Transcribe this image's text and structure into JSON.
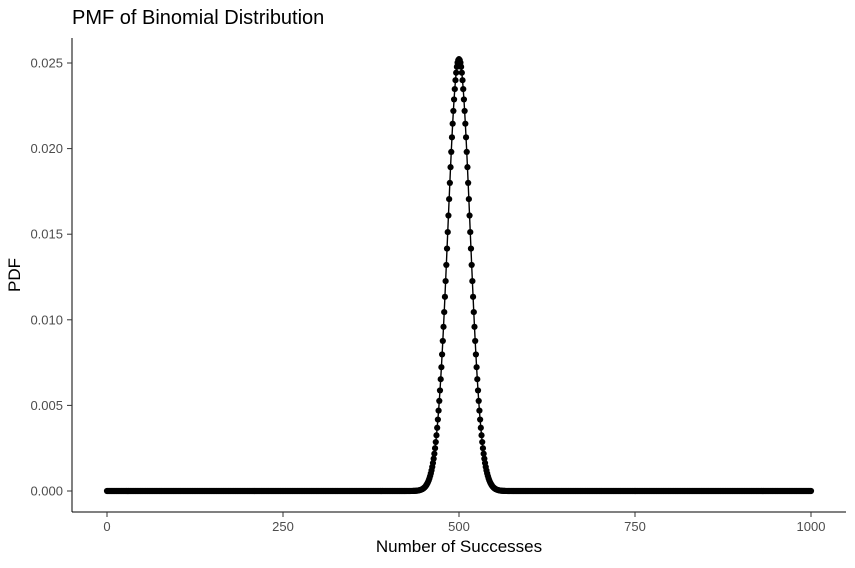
{
  "chart_data": {
    "type": "scatter",
    "title": "PMF of Binomial Distribution",
    "xlabel": "Number of Successes",
    "ylabel": "PDF",
    "distribution": {
      "family": "binomial",
      "n": 1000,
      "p": 0.5
    },
    "x_range": [
      0,
      1000
    ],
    "xlim": [
      0,
      1000
    ],
    "ylim": [
      0,
      0.025
    ],
    "x_ticks": [
      0,
      250,
      500,
      750,
      1000
    ],
    "x_tick_labels": [
      "0",
      "250",
      "500",
      "750",
      "1000"
    ],
    "y_ticks": [
      0.0,
      0.005,
      0.01,
      0.015,
      0.02,
      0.025
    ],
    "y_tick_labels": [
      "0.000",
      "0.005",
      "0.010",
      "0.015",
      "0.020",
      "0.025"
    ],
    "point_color": "#000000",
    "line_color": "#000000",
    "grid": false,
    "legend": "none",
    "peak": {
      "x": 500,
      "y": 0.0252
    }
  }
}
